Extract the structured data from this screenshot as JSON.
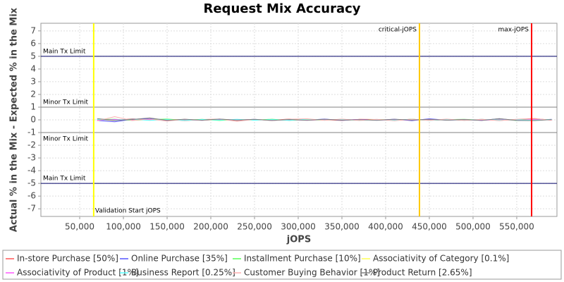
{
  "chart_data": {
    "type": "line",
    "title": "Request Mix Accuracy",
    "x_label": "jOPS",
    "y_label": "Actual % in the Mix - Expected % in the Mix",
    "xlim": [
      5600,
      596000
    ],
    "ylim": [
      -7.6,
      7.6
    ],
    "xticks": [
      {
        "value": 50000,
        "label": "50,000"
      },
      {
        "value": 100000,
        "label": "100,000"
      },
      {
        "value": 150000,
        "label": "150,000"
      },
      {
        "value": 200000,
        "label": "200,000"
      },
      {
        "value": 250000,
        "label": "250,000"
      },
      {
        "value": 300000,
        "label": "300,000"
      },
      {
        "value": 350000,
        "label": "350,000"
      },
      {
        "value": 400000,
        "label": "400,000"
      },
      {
        "value": 450000,
        "label": "450,000"
      },
      {
        "value": 500000,
        "label": "500,000"
      },
      {
        "value": 550000,
        "label": "550,000"
      }
    ],
    "yticks": [
      -7,
      -6,
      -5,
      -4,
      -3,
      -2,
      -1,
      0,
      1,
      2,
      3,
      4,
      5,
      6,
      7
    ],
    "grid": true,
    "hlines": [
      {
        "value": 5,
        "label": "Main Tx Limit",
        "color": "#000066"
      },
      {
        "value": 1,
        "label": "Minor Tx Limit",
        "color": "#808080"
      },
      {
        "value": -1,
        "label": "Minor Tx Limit",
        "color": "#808080"
      },
      {
        "value": -5,
        "label": "Main Tx Limit",
        "color": "#000066"
      }
    ],
    "vlines": [
      {
        "value": 66000,
        "label": "Validation Start jOPS",
        "color": "#ffff00"
      },
      {
        "value": 438700,
        "label": "critical-jOPS",
        "color": "#ffc800"
      },
      {
        "value": 567000,
        "label": "max-jOPS",
        "color": "#ff0000"
      }
    ],
    "x": [
      70000,
      90000,
      110000,
      130000,
      150000,
      170000,
      190000,
      210000,
      230000,
      250000,
      270000,
      290000,
      310000,
      330000,
      350000,
      370000,
      390000,
      410000,
      430000,
      450000,
      470000,
      490000,
      510000,
      530000,
      550000,
      570000,
      590000
    ],
    "series": [
      {
        "name": "In-store Purchase [50%]",
        "color": "#ff5555",
        "values": [
          0.02,
          -0.05,
          0.08,
          -0.03,
          0.04,
          -0.06,
          0.03,
          0.05,
          -0.04,
          0.02,
          -0.03,
          0.06,
          -0.02,
          0.01,
          -0.05,
          0.04,
          0.03,
          -0.02,
          0.05,
          -0.04,
          0.02,
          -0.03,
          0.04,
          -0.05,
          0.03,
          0.1,
          -0.02
        ]
      },
      {
        "name": "Online Purchase [35%]",
        "color": "#5555ff",
        "values": [
          -0.05,
          -0.15,
          0.04,
          0.1,
          -0.06,
          0.03,
          -0.04,
          0.05,
          -0.02,
          0.04,
          -0.05,
          0.02,
          -0.03,
          0.06,
          -0.04,
          0.03,
          -0.02,
          0.05,
          -0.06,
          0.08,
          -0.03,
          0.02,
          -0.04,
          0.09,
          -0.05,
          -0.03,
          0.04
        ]
      },
      {
        "name": "Installment Purchase [10%]",
        "color": "#55ff55",
        "values": [
          0.03,
          0.05,
          -0.04,
          0.02,
          0.06,
          -0.03,
          0.04,
          -0.05,
          0.03,
          -0.02,
          0.05,
          -0.04,
          0.02,
          -0.03,
          0.04,
          -0.02,
          0.03,
          -0.04,
          0.05,
          -0.03,
          0.02,
          0.04,
          -0.02,
          0.03,
          -0.05,
          0.02,
          0.01
        ]
      },
      {
        "name": "Associativity of Category [0.1%]",
        "color": "#ffff55",
        "values": [
          0.01,
          -0.02,
          0.02,
          -0.01,
          0.01,
          0.02,
          -0.02,
          0.01,
          -0.01,
          0.02,
          -0.02,
          0.01,
          0.02,
          -0.01,
          0.01,
          -0.02,
          0.02,
          -0.01,
          0.01,
          -0.02,
          0.02,
          -0.01,
          0.01,
          -0.02,
          0.02,
          -0.01,
          0.01
        ]
      },
      {
        "name": "Associativity of Product [1%]",
        "color": "#ff55ff",
        "values": [
          -0.02,
          0.03,
          -0.01,
          0.02,
          -0.03,
          0.02,
          -0.02,
          0.03,
          -0.01,
          0.02,
          -0.02,
          0.01,
          -0.03,
          0.02,
          -0.01,
          0.03,
          -0.02,
          0.01,
          -0.02,
          0.03,
          -0.01,
          0.02,
          -0.03,
          0.01,
          -0.02,
          0.02,
          -0.01
        ]
      },
      {
        "name": "Business Report [0.25%]",
        "color": "#55ffff",
        "values": [
          0.04,
          -0.03,
          0.05,
          -0.04,
          0.02,
          -0.05,
          0.03,
          -0.02,
          0.04,
          -0.03,
          0.02,
          -0.04,
          0.05,
          -0.02,
          0.03,
          -0.04,
          0.02,
          -0.03,
          0.04,
          -0.05,
          0.03,
          -0.02,
          0.04,
          -0.03,
          0.02,
          -0.04,
          0.03
        ]
      },
      {
        "name": "Customer Buying Behavior [1%]",
        "color": "#ffafaf",
        "values": [
          -0.08,
          0.25,
          -0.05,
          0.06,
          -0.1,
          0.05,
          -0.04,
          0.07,
          -0.12,
          0.04,
          -0.06,
          0.05,
          0.08,
          -0.04,
          0.06,
          -0.05,
          0.04,
          -0.07,
          0.05,
          -0.04,
          0.06,
          -0.05,
          0.04,
          -0.06,
          0.05,
          0.12,
          -0.04
        ]
      },
      {
        "name": "Product Return [2.65%]",
        "color": "#808080",
        "values": [
          0.1,
          -0.05,
          0.03,
          0.15,
          -0.04,
          0.05,
          -0.03,
          0.06,
          -0.02,
          0.04,
          -0.05,
          0.03,
          -0.04,
          0.05,
          -0.03,
          0.02,
          -0.04,
          0.05,
          -0.02,
          0.04,
          -0.03,
          0.02,
          -0.05,
          0.1,
          -0.04,
          -0.06,
          0.02
        ]
      }
    ]
  }
}
